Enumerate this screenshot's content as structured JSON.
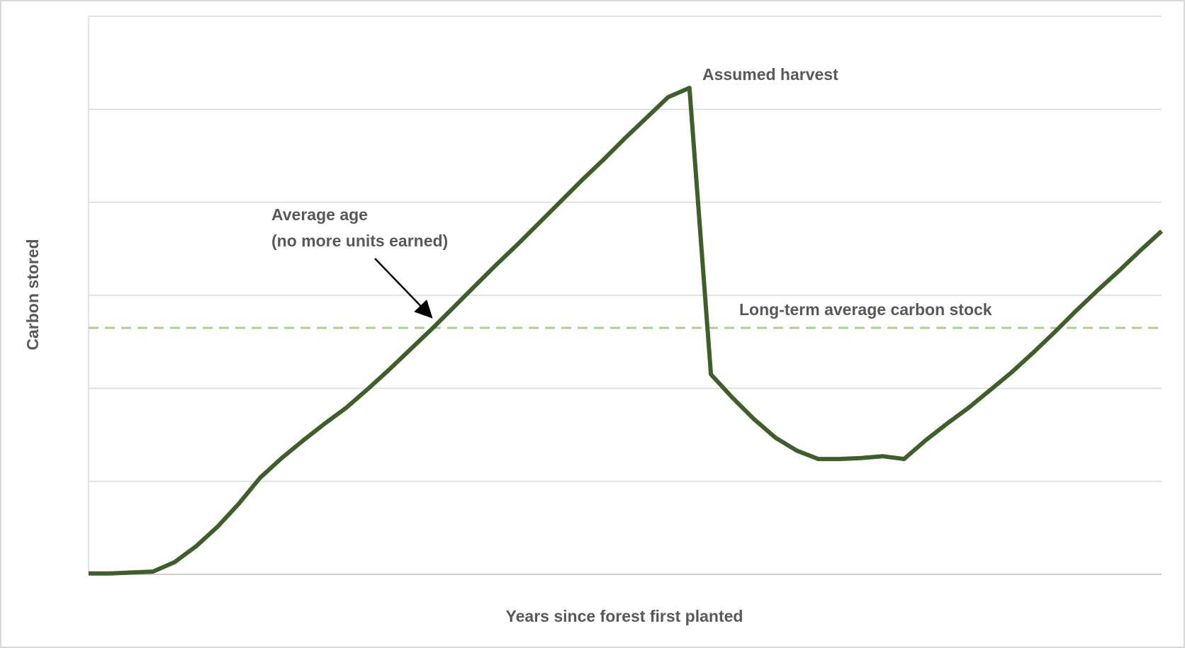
{
  "chart_data": {
    "type": "line",
    "x_label": "Years since forest first planted",
    "y_label": "Carbon stored",
    "x": [
      0,
      1,
      2,
      3,
      4,
      5,
      6,
      7,
      8,
      9,
      10,
      11,
      12,
      13,
      14,
      15,
      16,
      17,
      18,
      19,
      20,
      21,
      22,
      23,
      24,
      25,
      26,
      27,
      28,
      29,
      30,
      31,
      32,
      33,
      34,
      35,
      36,
      37,
      38,
      39,
      40,
      41,
      42,
      43,
      44,
      45,
      46,
      47,
      48,
      49,
      50
    ],
    "values": [
      0.01,
      0.01,
      0.02,
      0.03,
      0.13,
      0.3,
      0.51,
      0.76,
      1.04,
      1.25,
      1.44,
      1.62,
      1.79,
      1.99,
      2.2,
      2.42,
      2.64,
      2.87,
      3.1,
      3.33,
      3.55,
      3.78,
      4.01,
      4.24,
      4.46,
      4.69,
      4.91,
      5.13,
      5.23,
      2.15,
      1.9,
      1.67,
      1.47,
      1.33,
      1.24,
      1.24,
      1.25,
      1.27,
      1.24,
      1.44,
      1.62,
      1.79,
      1.98,
      2.17,
      2.38,
      2.6,
      2.83,
      3.05,
      3.26,
      3.48,
      3.69
    ],
    "color": "#3f5f2a",
    "xlim": [
      0,
      50
    ],
    "ylim": [
      0,
      6
    ],
    "yticks": [
      0,
      1,
      2,
      3,
      4,
      5,
      6
    ],
    "show_tick_labels": false,
    "grid": true,
    "reference_line": {
      "value": 2.65,
      "label": "Long-term average carbon stock",
      "color": "#a9d18e"
    },
    "annotations": {
      "harvest": "Assumed harvest",
      "average_age": [
        "Average age",
        "(no more units earned)"
      ]
    }
  }
}
